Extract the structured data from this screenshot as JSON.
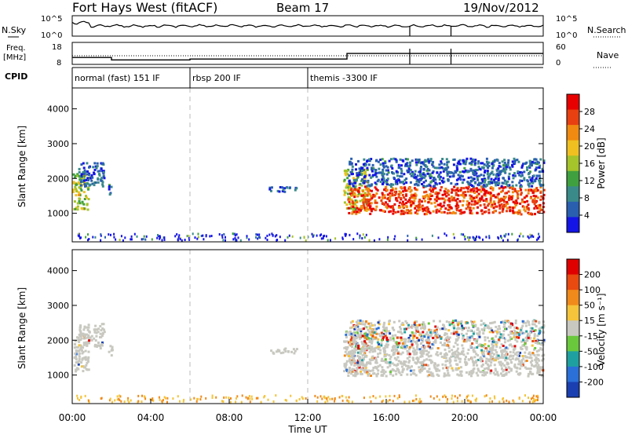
{
  "chart_data": {
    "type": "heatmap",
    "header": {
      "title": "Fort Hays West (fitACF)",
      "beam": "Beam 17",
      "date": "19/Nov/2012"
    },
    "x_axis": {
      "label": "Time UT",
      "ticks": [
        "00:00",
        "04:00",
        "08:00",
        "12:00",
        "16:00",
        "20:00",
        "00:00"
      ],
      "range_hours": [
        0,
        24
      ]
    },
    "noise_panel": {
      "left_label": "N.Sky",
      "right_label": "N.Search",
      "left_ticks": [
        "10^5",
        "10^0"
      ],
      "right_ticks": [
        "10^5",
        "10^0"
      ],
      "dropouts_hours": [
        17.2,
        19.3
      ]
    },
    "freq_panel": {
      "left_label": "Freq.",
      "left_unit": "[MHz]",
      "left_ticks": [
        "18",
        "8"
      ],
      "right_label": "Nave",
      "right_ticks": [
        "60",
        "0"
      ],
      "freq_steps": [
        {
          "t0": 0,
          "t1": 2.0,
          "mhz": 12.0
        },
        {
          "t0": 2.0,
          "t1": 6.0,
          "mhz": 10.6
        },
        {
          "t0": 6.0,
          "t1": 14.0,
          "mhz": 11.1
        },
        {
          "t0": 14.0,
          "t1": 24.0,
          "mhz": 14.3
        }
      ]
    },
    "cpid": {
      "label": "CPID",
      "segments": [
        {
          "start": 0,
          "text": "normal (fast) 151 IF"
        },
        {
          "start": 6,
          "text": "rbsp 200 IF"
        },
        {
          "start": 12,
          "text": "themis -3300 IF"
        }
      ]
    },
    "power_panel": {
      "ylabel": "Slant Range [km]",
      "yticks": [
        "1000",
        "2000",
        "3000",
        "4000"
      ],
      "yrange_km": [
        180,
        4600
      ],
      "colorbar_label": "Power [dB]",
      "colorbar_ticks": [
        "4",
        "8",
        "12",
        "16",
        "20",
        "24",
        "28"
      ],
      "colorbar_range": [
        0,
        32
      ],
      "colors": [
        "#1414e6",
        "#2a5fb0",
        "#3a8a8a",
        "#3fa03f",
        "#a5c32a",
        "#f0c020",
        "#f08a10",
        "#e84010",
        "#e80000"
      ]
    },
    "velocity_panel": {
      "ylabel": "Slant Range [km]",
      "yticks": [
        "1000",
        "2000",
        "3000",
        "4000"
      ],
      "yrange_km": [
        180,
        4600
      ],
      "colorbar_label": "Velocity [m s⁻¹]",
      "colorbar_ticks": [
        "200",
        "100",
        "50",
        "15",
        "-15",
        "-50",
        "-100",
        "-200"
      ],
      "colors": [
        "#1a3fb0",
        "#2a70d8",
        "#1fa0a0",
        "#6ac83c",
        "#c8c8c0",
        "#f5c43a",
        "#f08a1a",
        "#e84a10",
        "#e00000"
      ]
    },
    "echo_regions": [
      {
        "t0": 0.0,
        "t1": 0.8,
        "r0": 1100,
        "r1": 2200,
        "power": "mid",
        "vel": "ground"
      },
      {
        "t0": 0.3,
        "t1": 1.6,
        "r0": 1800,
        "r1": 2500,
        "power": "low",
        "vel": "ground"
      },
      {
        "t0": 1.8,
        "t1": 2.0,
        "r0": 1500,
        "r1": 1900,
        "power": "low",
        "vel": "ground"
      },
      {
        "t0": 10.0,
        "t1": 11.5,
        "r0": 1650,
        "r1": 1800,
        "power": "low",
        "vel": "ground"
      },
      {
        "t0": 13.8,
        "t1": 15.0,
        "r0": 1100,
        "r1": 2300,
        "power": "mid",
        "vel": "mixed"
      },
      {
        "t0": 14.0,
        "t1": 24.0,
        "r0": 1000,
        "r1": 1800,
        "power": "high",
        "vel": "ground"
      },
      {
        "t0": 14.0,
        "t1": 24.0,
        "r0": 1800,
        "r1": 2600,
        "power": "low",
        "vel": "mixed"
      }
    ]
  }
}
